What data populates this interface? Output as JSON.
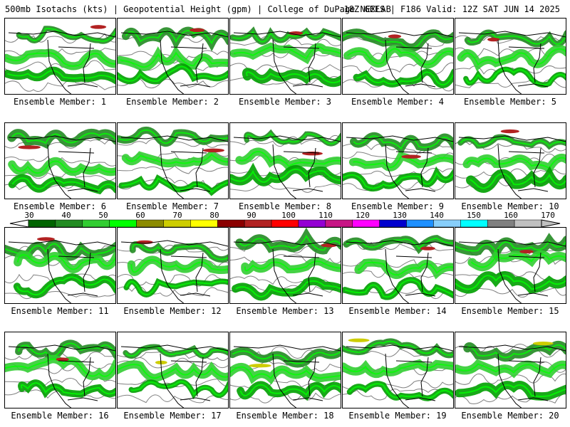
{
  "header": {
    "left": "500mb Isotachs (kts) | Geopotential Height (gpm) | College of DuPage NEXLAB",
    "right": "18Z GEFS | F186 Valid: 12Z SAT JUN 14 2025"
  },
  "member_prefix": "Ensemble Member: ",
  "members": [
    "1",
    "2",
    "3",
    "4",
    "5",
    "6",
    "7",
    "8",
    "9",
    "10",
    "11",
    "12",
    "13",
    "14",
    "15",
    "16",
    "17",
    "18",
    "19",
    "20"
  ],
  "colorbar": {
    "ticks": [
      "30",
      "40",
      "50",
      "60",
      "70",
      "80",
      "90",
      "100",
      "110",
      "120",
      "130",
      "140",
      "150",
      "160",
      "170"
    ],
    "colors": [
      "#006400",
      "#228b22",
      "#32cd32",
      "#00ff00",
      "#8b8b00",
      "#cdcd00",
      "#ffff00",
      "#8b0000",
      "#b22222",
      "#ff0000",
      "#9400d3",
      "#c71585",
      "#ff00ff",
      "#0000cd",
      "#1e90ff",
      "#87cefa",
      "#00ffff",
      "#808080",
      "#c0c0c0"
    ]
  }
}
